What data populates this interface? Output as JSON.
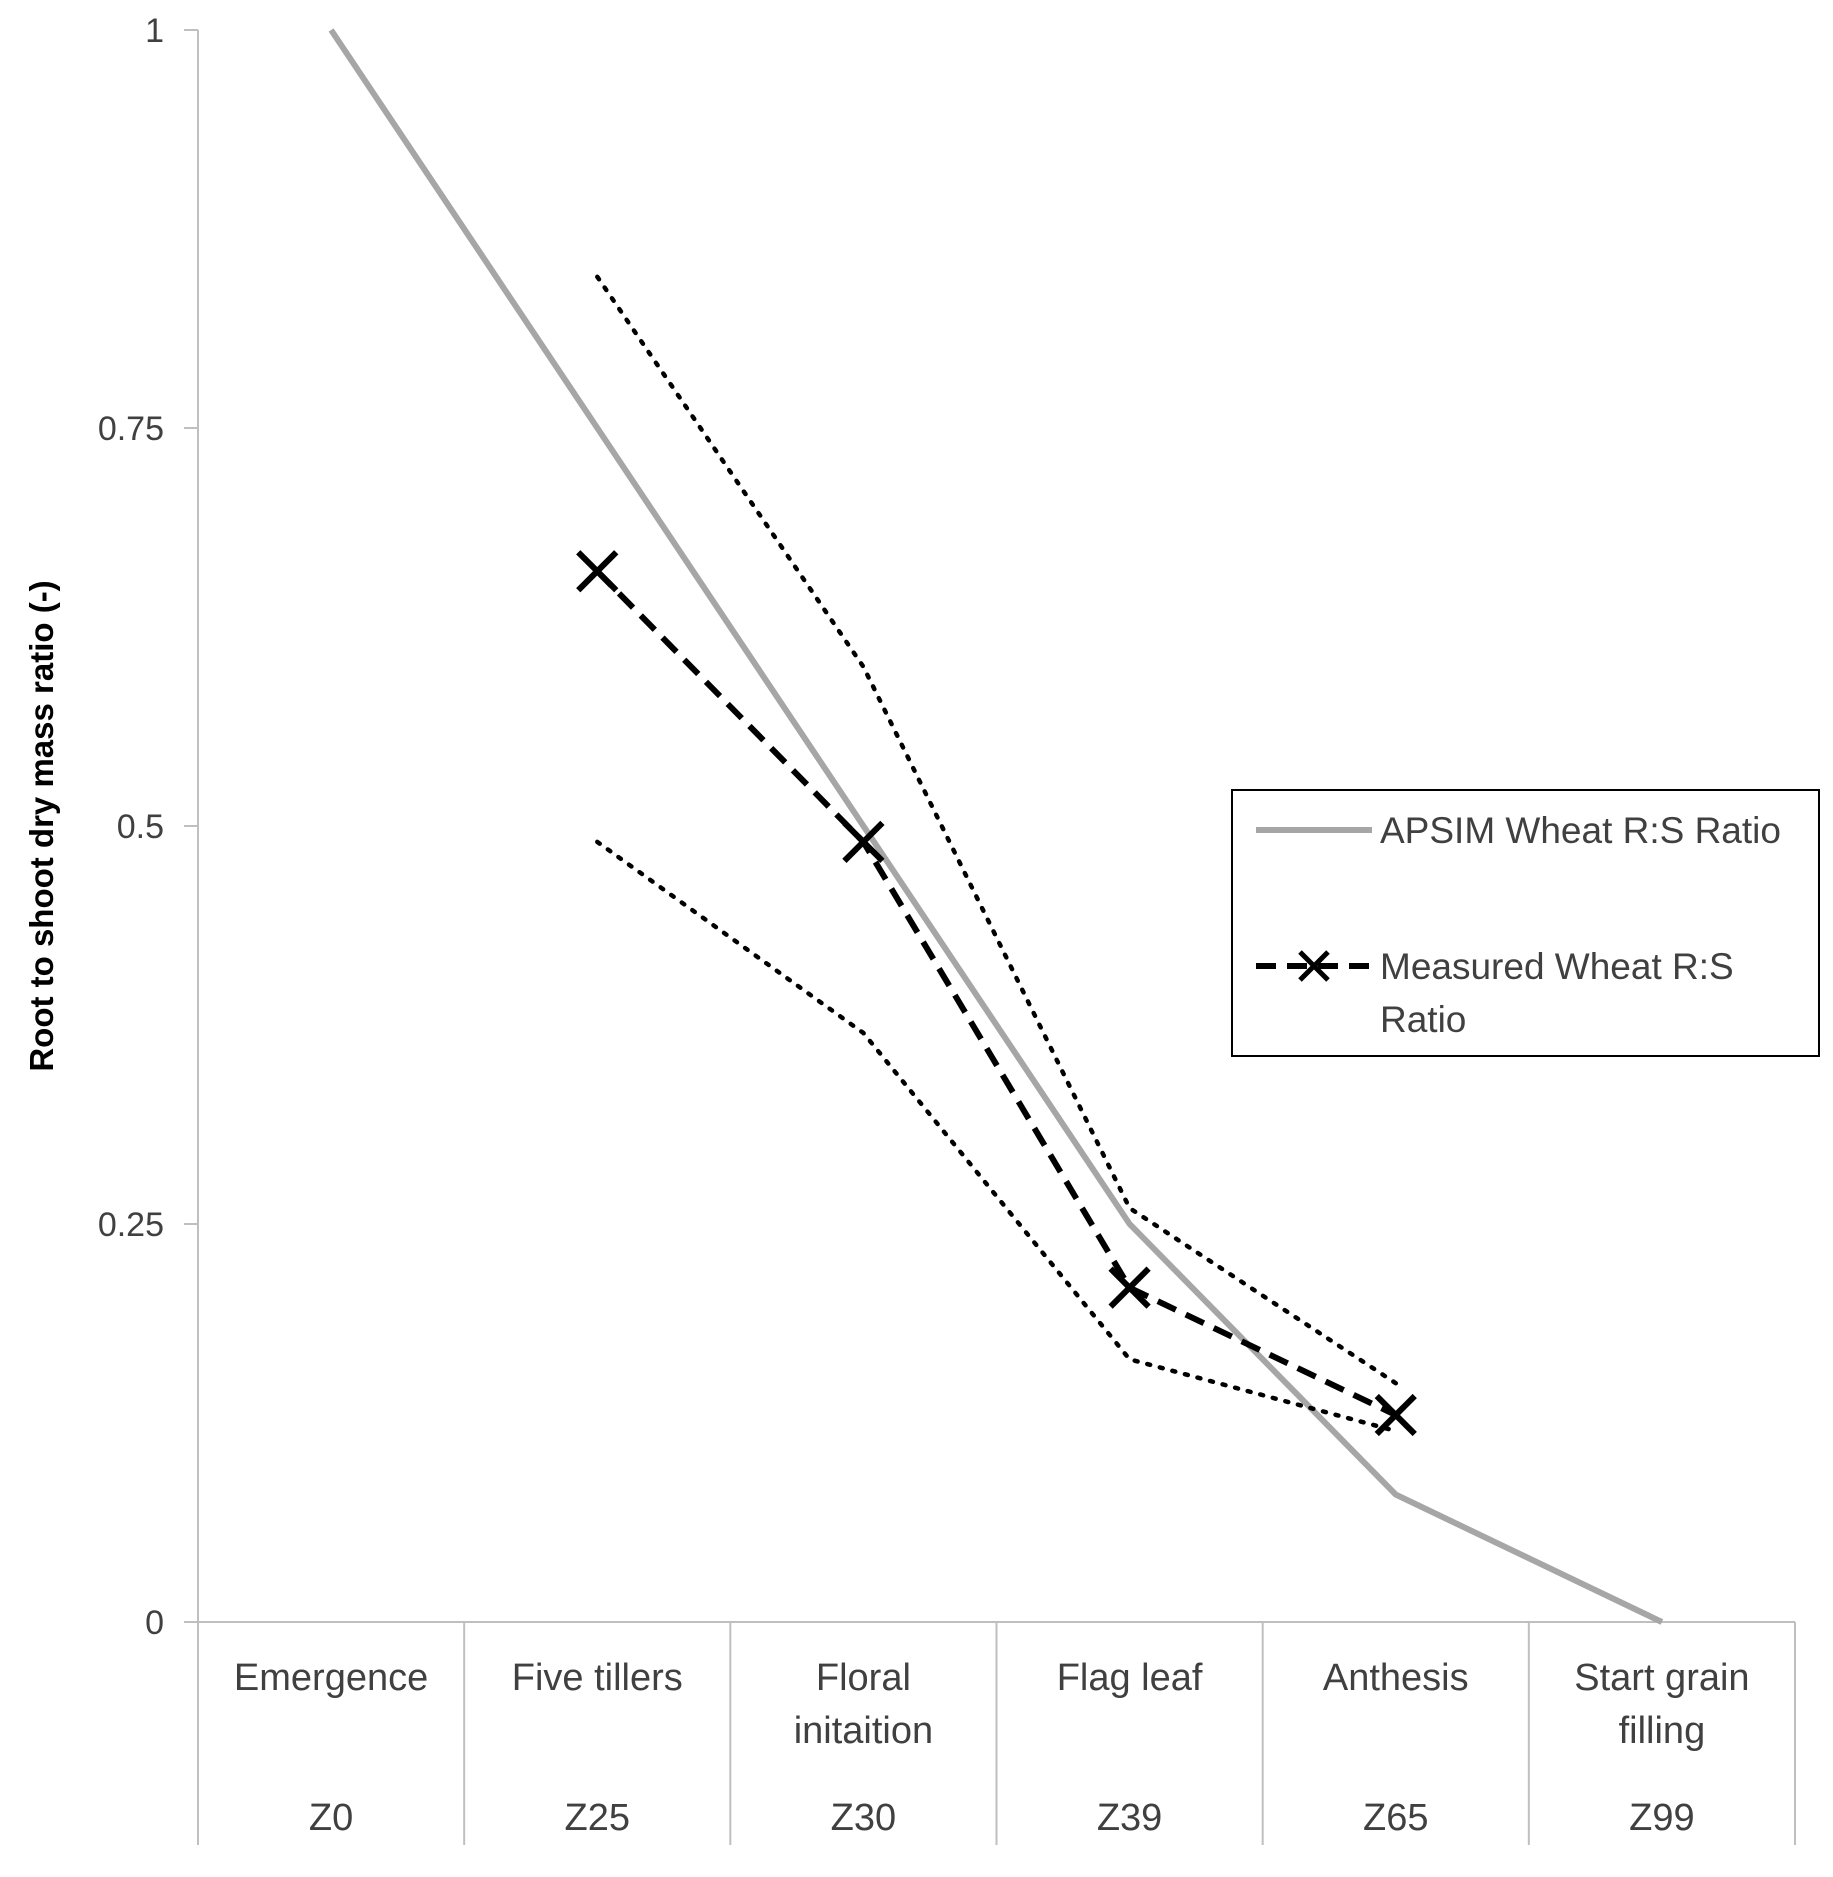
{
  "chart_data": {
    "type": "line",
    "title": "",
    "xlabel": "",
    "ylabel": "Root to shoot dry mass ratio (-)",
    "ylim": [
      0,
      1
    ],
    "yticks": [
      {
        "value": 0,
        "label": "0"
      },
      {
        "value": 0.25,
        "label": "0.25"
      },
      {
        "value": 0.5,
        "label": "0.5"
      },
      {
        "value": 0.75,
        "label": "0.75"
      },
      {
        "value": 1,
        "label": "1"
      }
    ],
    "categories": [
      {
        "stage": [
          "Emergence"
        ],
        "code": "Z0"
      },
      {
        "stage": [
          "Five tillers"
        ],
        "code": "Z25"
      },
      {
        "stage": [
          "Floral",
          "initaition"
        ],
        "code": "Z30"
      },
      {
        "stage": [
          "Flag leaf"
        ],
        "code": "Z39"
      },
      {
        "stage": [
          "Anthesis"
        ],
        "code": "Z65"
      },
      {
        "stage": [
          "Start grain",
          "filling"
        ],
        "code": "Z99"
      }
    ],
    "series": [
      {
        "name": "APSIM Wheat R:S Ratio",
        "style": "solid",
        "color": "#a6a6a6",
        "marker": "none",
        "values": [
          1.0,
          0.75,
          0.5,
          0.25,
          0.08,
          0.0
        ]
      },
      {
        "name": "Measured Wheat R:S Ratio",
        "style": "dashed",
        "color": "#000000",
        "marker": "x",
        "values": [
          null,
          0.66,
          0.49,
          0.21,
          0.13,
          null
        ]
      },
      {
        "name": "Measured upper bound",
        "style": "dotted",
        "color": "#000000",
        "marker": "none",
        "in_legend": false,
        "values": [
          null,
          0.845,
          0.6,
          0.26,
          0.15,
          null
        ]
      },
      {
        "name": "Measured lower bound",
        "style": "dotted",
        "color": "#000000",
        "marker": "none",
        "in_legend": false,
        "values": [
          null,
          0.49,
          0.37,
          0.165,
          0.12,
          null
        ]
      }
    ],
    "legend": {
      "position": "right",
      "entries": [
        {
          "lines": [
            "APSIM Wheat R:S Ratio"
          ],
          "series": 0
        },
        {
          "lines": [
            "Measured Wheat R:S",
            "Ratio"
          ],
          "series": 1
        }
      ]
    }
  }
}
